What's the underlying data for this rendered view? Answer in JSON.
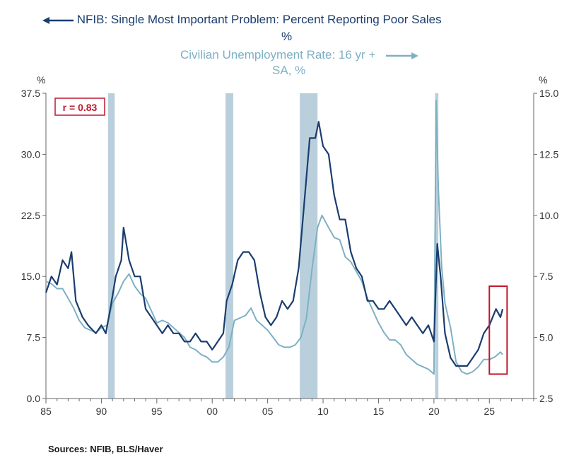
{
  "legend": {
    "left_series_line1": "NFIB: Single Most Important Problem: Percent Reporting Poor Sales",
    "left_series_line2": "%",
    "right_series_line1": "Civilian Unemployment Rate: 16 yr +",
    "right_series_line2": "SA, %"
  },
  "source": "Sources:  NFIB, BLS/Haver",
  "colors": {
    "poor_sales": "#1b3d6e",
    "unemployment": "#7eb0c4",
    "recession": "#b9d0dc",
    "highlight": "#c0172e",
    "axis": "#666666"
  },
  "chart_data": {
    "type": "line",
    "left_axis": {
      "unit_label": "%",
      "ylim": [
        0,
        37.5
      ],
      "ticks": [
        "0.0",
        "7.5",
        "15.0",
        "22.5",
        "30.0",
        "37.5"
      ]
    },
    "right_axis": {
      "unit_label": "%",
      "ylim": [
        2.5,
        15.0
      ],
      "ticks": [
        "2.5",
        "5.0",
        "7.5",
        "10.0",
        "12.5",
        "15.0"
      ]
    },
    "x_axis": {
      "range": [
        1985,
        2029
      ],
      "tick_labels": [
        "85",
        "90",
        "95",
        "00",
        "05",
        "10",
        "15",
        "20",
        "25"
      ],
      "tick_values": [
        1985,
        1990,
        1995,
        2000,
        2005,
        2010,
        2015,
        2020,
        2025
      ]
    },
    "annotation": {
      "text": "r = 0.83"
    },
    "recessions": [
      [
        1990.6,
        1991.2
      ],
      [
        2001.2,
        2001.9
      ],
      [
        2007.9,
        2009.5
      ],
      [
        2020.1,
        2020.4
      ]
    ],
    "highlight_box": {
      "x_start": 2025.0,
      "x_end": 2026.6,
      "y_low": 3.0,
      "y_high": 13.8
    },
    "series": [
      {
        "name": "NFIB: Single Most Important Problem: Percent Reporting Poor Sales",
        "axis": "left",
        "points": [
          [
            1985.0,
            13
          ],
          [
            1985.5,
            15
          ],
          [
            1986.0,
            14
          ],
          [
            1986.5,
            17
          ],
          [
            1987.0,
            16
          ],
          [
            1987.3,
            18
          ],
          [
            1987.7,
            12
          ],
          [
            1988.3,
            10
          ],
          [
            1988.8,
            9
          ],
          [
            1989.5,
            8
          ],
          [
            1990.0,
            9
          ],
          [
            1990.4,
            8
          ],
          [
            1990.8,
            11
          ],
          [
            1991.3,
            15
          ],
          [
            1991.8,
            17
          ],
          [
            1992.0,
            21
          ],
          [
            1992.5,
            17
          ],
          [
            1993.0,
            15
          ],
          [
            1993.5,
            15
          ],
          [
            1994.0,
            11
          ],
          [
            1994.5,
            10
          ],
          [
            1995.0,
            9
          ],
          [
            1995.5,
            8
          ],
          [
            1996.0,
            9
          ],
          [
            1996.5,
            8
          ],
          [
            1997.0,
            8
          ],
          [
            1997.5,
            7
          ],
          [
            1998.0,
            7
          ],
          [
            1998.5,
            8
          ],
          [
            1999.0,
            7
          ],
          [
            1999.5,
            7
          ],
          [
            2000.0,
            6
          ],
          [
            2000.5,
            7
          ],
          [
            2001.0,
            8
          ],
          [
            2001.3,
            12
          ],
          [
            2001.8,
            14
          ],
          [
            2002.3,
            17
          ],
          [
            2002.8,
            18
          ],
          [
            2003.3,
            18
          ],
          [
            2003.8,
            17
          ],
          [
            2004.3,
            13
          ],
          [
            2004.8,
            10
          ],
          [
            2005.3,
            9
          ],
          [
            2005.8,
            10
          ],
          [
            2006.3,
            12
          ],
          [
            2006.8,
            11
          ],
          [
            2007.3,
            12
          ],
          [
            2007.8,
            16
          ],
          [
            2008.3,
            24
          ],
          [
            2008.8,
            32
          ],
          [
            2009.3,
            32
          ],
          [
            2009.6,
            34
          ],
          [
            2010.0,
            31
          ],
          [
            2010.5,
            30
          ],
          [
            2011.0,
            25
          ],
          [
            2011.5,
            22
          ],
          [
            2012.0,
            22
          ],
          [
            2012.5,
            18
          ],
          [
            2013.0,
            16
          ],
          [
            2013.5,
            15
          ],
          [
            2014.0,
            12
          ],
          [
            2014.5,
            12
          ],
          [
            2015.0,
            11
          ],
          [
            2015.5,
            11
          ],
          [
            2016.0,
            12
          ],
          [
            2016.5,
            11
          ],
          [
            2017.0,
            10
          ],
          [
            2017.5,
            9
          ],
          [
            2018.0,
            10
          ],
          [
            2018.5,
            9
          ],
          [
            2019.0,
            8
          ],
          [
            2019.5,
            9
          ],
          [
            2020.0,
            7
          ],
          [
            2020.3,
            19
          ],
          [
            2020.6,
            15
          ],
          [
            2021.0,
            8
          ],
          [
            2021.5,
            5
          ],
          [
            2022.0,
            4
          ],
          [
            2022.5,
            4
          ],
          [
            2023.0,
            4
          ],
          [
            2023.5,
            5
          ],
          [
            2024.0,
            6
          ],
          [
            2024.5,
            8
          ],
          [
            2025.0,
            9
          ],
          [
            2025.3,
            10
          ],
          [
            2025.6,
            11
          ],
          [
            2026.0,
            10
          ],
          [
            2026.2,
            11
          ]
        ]
      },
      {
        "name": "Civilian Unemployment Rate: 16 yr + SA, %",
        "axis": "right",
        "points": [
          [
            1985.0,
            7.3
          ],
          [
            1985.5,
            7.2
          ],
          [
            1986.0,
            7.0
          ],
          [
            1986.5,
            7.0
          ],
          [
            1987.0,
            6.6
          ],
          [
            1987.5,
            6.2
          ],
          [
            1988.0,
            5.7
          ],
          [
            1988.5,
            5.4
          ],
          [
            1989.0,
            5.3
          ],
          [
            1989.5,
            5.2
          ],
          [
            1990.0,
            5.4
          ],
          [
            1990.5,
            5.5
          ],
          [
            1991.0,
            6.4
          ],
          [
            1991.5,
            6.8
          ],
          [
            1992.0,
            7.3
          ],
          [
            1992.5,
            7.6
          ],
          [
            1993.0,
            7.1
          ],
          [
            1993.5,
            6.8
          ],
          [
            1994.0,
            6.6
          ],
          [
            1994.5,
            6.1
          ],
          [
            1995.0,
            5.6
          ],
          [
            1995.5,
            5.7
          ],
          [
            1996.0,
            5.6
          ],
          [
            1996.5,
            5.4
          ],
          [
            1997.0,
            5.2
          ],
          [
            1997.5,
            5.0
          ],
          [
            1998.0,
            4.6
          ],
          [
            1998.5,
            4.5
          ],
          [
            1999.0,
            4.3
          ],
          [
            1999.5,
            4.2
          ],
          [
            2000.0,
            4.0
          ],
          [
            2000.5,
            4.0
          ],
          [
            2001.0,
            4.2
          ],
          [
            2001.5,
            4.6
          ],
          [
            2002.0,
            5.7
          ],
          [
            2002.5,
            5.8
          ],
          [
            2003.0,
            5.9
          ],
          [
            2003.5,
            6.2
          ],
          [
            2004.0,
            5.7
          ],
          [
            2004.5,
            5.5
          ],
          [
            2005.0,
            5.3
          ],
          [
            2005.5,
            5.0
          ],
          [
            2006.0,
            4.7
          ],
          [
            2006.5,
            4.6
          ],
          [
            2007.0,
            4.6
          ],
          [
            2007.5,
            4.7
          ],
          [
            2008.0,
            5.0
          ],
          [
            2008.5,
            5.8
          ],
          [
            2009.0,
            7.8
          ],
          [
            2009.5,
            9.5
          ],
          [
            2009.9,
            10.0
          ],
          [
            2010.5,
            9.5
          ],
          [
            2011.0,
            9.1
          ],
          [
            2011.5,
            9.0
          ],
          [
            2012.0,
            8.3
          ],
          [
            2012.5,
            8.1
          ],
          [
            2013.0,
            7.7
          ],
          [
            2013.5,
            7.3
          ],
          [
            2014.0,
            6.6
          ],
          [
            2014.5,
            6.1
          ],
          [
            2015.0,
            5.6
          ],
          [
            2015.5,
            5.2
          ],
          [
            2016.0,
            4.9
          ],
          [
            2016.5,
            4.9
          ],
          [
            2017.0,
            4.7
          ],
          [
            2017.5,
            4.3
          ],
          [
            2018.0,
            4.1
          ],
          [
            2018.5,
            3.9
          ],
          [
            2019.0,
            3.8
          ],
          [
            2019.5,
            3.7
          ],
          [
            2020.0,
            3.5
          ],
          [
            2020.2,
            14.7
          ],
          [
            2020.4,
            11.1
          ],
          [
            2020.7,
            7.9
          ],
          [
            2021.0,
            6.4
          ],
          [
            2021.5,
            5.4
          ],
          [
            2022.0,
            4.0
          ],
          [
            2022.5,
            3.6
          ],
          [
            2023.0,
            3.5
          ],
          [
            2023.5,
            3.6
          ],
          [
            2024.0,
            3.8
          ],
          [
            2024.5,
            4.1
          ],
          [
            2025.0,
            4.1
          ],
          [
            2025.5,
            4.2
          ],
          [
            2026.0,
            4.4
          ],
          [
            2026.2,
            4.3
          ]
        ]
      }
    ]
  }
}
